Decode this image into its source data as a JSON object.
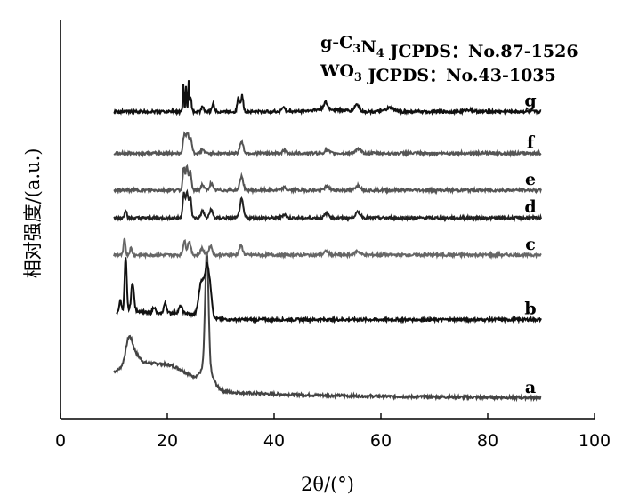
{
  "chart_data": {
    "type": "line",
    "title": "",
    "xlabel": "2θ/(°)",
    "ylabel": "相对强度/(a.u.)",
    "xlim": [
      0,
      100
    ],
    "xticks": [
      0,
      20,
      40,
      60,
      80,
      100
    ],
    "yticks_shown": false,
    "grid": false,
    "legend": "none",
    "annotations": [
      "g-C3N4 JCPDS：No.87-1526",
      "WO3 JCPDS：No.43-1035"
    ],
    "series": [
      {
        "name": "a",
        "color": "#444444",
        "x_range": [
          10,
          90
        ],
        "baseline": 0.0,
        "peaks": [
          [
            12.8,
            0.04,
            0.8
          ],
          [
            13.5,
            0.03,
            1.5
          ],
          [
            27.4,
            0.25,
            0.45
          ],
          [
            27.4,
            0.04,
            1.6
          ]
        ],
        "broad": [
          [
            15,
            0.045,
            7
          ],
          [
            22,
            0.03,
            5
          ]
        ]
      },
      {
        "name": "b",
        "color": "#111111",
        "x_range": [
          10.5,
          90
        ],
        "baseline": 0.17,
        "peaks": [
          [
            12.2,
            0.115,
            0.28
          ],
          [
            13.5,
            0.06,
            0.35
          ],
          [
            11.2,
            0.025,
            0.3
          ],
          [
            17.5,
            0.015,
            0.4
          ],
          [
            19.6,
            0.022,
            0.4
          ],
          [
            22.5,
            0.015,
            0.4
          ],
          [
            26.4,
            0.075,
            0.7
          ],
          [
            27.5,
            0.11,
            0.6
          ],
          [
            28.2,
            0.03,
            0.4
          ]
        ],
        "broad": [
          [
            13,
            0.02,
            4
          ],
          [
            22,
            0.015,
            5
          ]
        ]
      },
      {
        "name": "c",
        "color": "#666666",
        "x_range": [
          10,
          90
        ],
        "baseline": 0.31,
        "peaks": [
          [
            12.0,
            0.035,
            0.25
          ],
          [
            13.2,
            0.015,
            0.3
          ],
          [
            23.2,
            0.03,
            0.35
          ],
          [
            24.1,
            0.03,
            0.4
          ],
          [
            26.5,
            0.015,
            0.4
          ],
          [
            28.1,
            0.02,
            0.45
          ],
          [
            33.8,
            0.02,
            0.45
          ],
          [
            49.8,
            0.008,
            0.6
          ],
          [
            55.6,
            0.008,
            0.7
          ]
        ],
        "broad": []
      },
      {
        "name": "d",
        "color": "#222222",
        "x_range": [
          10,
          90
        ],
        "baseline": 0.39,
        "peaks": [
          [
            12.2,
            0.018,
            0.3
          ],
          [
            23.1,
            0.055,
            0.3
          ],
          [
            23.7,
            0.055,
            0.3
          ],
          [
            24.3,
            0.045,
            0.3
          ],
          [
            26.6,
            0.015,
            0.4
          ],
          [
            28.2,
            0.018,
            0.4
          ],
          [
            33.9,
            0.04,
            0.45
          ],
          [
            41.9,
            0.008,
            0.5
          ],
          [
            49.9,
            0.01,
            0.6
          ],
          [
            55.7,
            0.012,
            0.7
          ]
        ],
        "broad": []
      },
      {
        "name": "e",
        "color": "#555555",
        "x_range": [
          10,
          90
        ],
        "baseline": 0.45,
        "peaks": [
          [
            23.1,
            0.05,
            0.3
          ],
          [
            23.7,
            0.05,
            0.3
          ],
          [
            24.3,
            0.04,
            0.3
          ],
          [
            26.6,
            0.012,
            0.4
          ],
          [
            28.2,
            0.015,
            0.4
          ],
          [
            33.9,
            0.03,
            0.45
          ],
          [
            41.9,
            0.006,
            0.5
          ],
          [
            49.9,
            0.008,
            0.6
          ],
          [
            55.7,
            0.01,
            0.7
          ]
        ],
        "broad": []
      },
      {
        "name": "f",
        "color": "#555555",
        "x_range": [
          10,
          90
        ],
        "baseline": 0.53,
        "peaks": [
          [
            23.2,
            0.04,
            0.35
          ],
          [
            23.8,
            0.04,
            0.35
          ],
          [
            24.4,
            0.03,
            0.35
          ],
          [
            26.6,
            0.008,
            0.4
          ],
          [
            33.9,
            0.025,
            0.45
          ],
          [
            41.9,
            0.005,
            0.5
          ],
          [
            49.9,
            0.006,
            0.6
          ],
          [
            55.7,
            0.008,
            0.7
          ]
        ],
        "broad": []
      },
      {
        "name": "g",
        "color": "#111111",
        "x_range": [
          10,
          90
        ],
        "baseline": 0.62,
        "peaks": [
          [
            23.0,
            0.06,
            0.15
          ],
          [
            23.5,
            0.055,
            0.15
          ],
          [
            24.0,
            0.065,
            0.15
          ],
          [
            24.4,
            0.03,
            0.2
          ],
          [
            26.6,
            0.012,
            0.3
          ],
          [
            28.6,
            0.018,
            0.3
          ],
          [
            33.3,
            0.03,
            0.3
          ],
          [
            34.0,
            0.035,
            0.3
          ],
          [
            41.7,
            0.01,
            0.4
          ],
          [
            49.6,
            0.015,
            0.5
          ],
          [
            55.5,
            0.015,
            0.6
          ],
          [
            61.7,
            0.008,
            1.0
          ],
          [
            76.5,
            0.004,
            1.0
          ]
        ],
        "broad": [
          [
            50,
            0.005,
            4
          ]
        ]
      }
    ]
  }
}
